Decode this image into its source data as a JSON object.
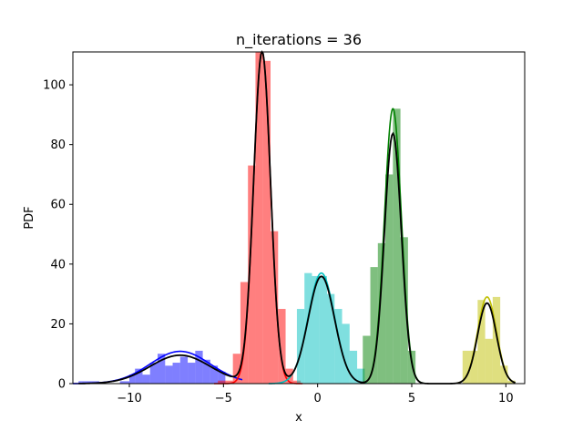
{
  "chart_data": {
    "type": "histogram_with_density",
    "title": "n_iterations = 36",
    "xlabel": "x",
    "ylabel": "PDF",
    "xlim": [
      -13,
      11
    ],
    "ylim": [
      0,
      111
    ],
    "x_ticks": [
      -10,
      -5,
      0,
      5,
      10
    ],
    "y_ticks": [
      0,
      20,
      40,
      60,
      80,
      100
    ],
    "x_tick_labels": [
      "−10",
      "−5",
      "0",
      "5",
      "10"
    ],
    "y_tick_labels": [
      "0",
      "20",
      "40",
      "60",
      "80",
      "100"
    ],
    "grid": false,
    "legend": "none",
    "histograms": [
      {
        "color": "#0000ff",
        "alpha": 0.5,
        "bins": [
          [
            -12.7,
            -12.15,
            0.8
          ],
          [
            -12.15,
            -11.6,
            0.8
          ],
          [
            -10.5,
            -10.0,
            0.8
          ],
          [
            -10.0,
            -9.7,
            3.0
          ],
          [
            -9.7,
            -9.3,
            5.0
          ],
          [
            -9.3,
            -8.9,
            3.0
          ],
          [
            -8.9,
            -8.5,
            7.0
          ],
          [
            -8.5,
            -8.1,
            10.0
          ],
          [
            -8.1,
            -7.7,
            6.0
          ],
          [
            -7.7,
            -7.3,
            7.0
          ],
          [
            -7.3,
            -6.9,
            9.0
          ],
          [
            -6.9,
            -6.5,
            7.0
          ],
          [
            -6.5,
            -6.1,
            11.0
          ],
          [
            -6.1,
            -5.7,
            8.0
          ],
          [
            -5.7,
            -5.3,
            6.0
          ],
          [
            -5.3,
            -4.9,
            4.0
          ]
        ]
      },
      {
        "color": "#ff0000",
        "alpha": 0.5,
        "bins": [
          [
            -5.3,
            -4.5,
            1.0
          ],
          [
            -4.5,
            -4.1,
            10.0
          ],
          [
            -4.1,
            -3.7,
            34.0
          ],
          [
            -3.7,
            -3.3,
            73.0
          ],
          [
            -3.3,
            -2.9,
            112.0
          ],
          [
            -2.9,
            -2.5,
            108.0
          ],
          [
            -2.5,
            -2.1,
            51.0
          ],
          [
            -2.1,
            -1.7,
            25.0
          ],
          [
            -1.7,
            -1.3,
            5.0
          ],
          [
            -1.3,
            -0.9,
            1.0
          ]
        ]
      },
      {
        "color": "#00bfbf",
        "alpha": 0.5,
        "bins": [
          [
            -1.1,
            -0.7,
            25.0
          ],
          [
            -0.7,
            -0.3,
            37.0
          ],
          [
            -0.3,
            0.1,
            36.0
          ],
          [
            0.1,
            0.5,
            36.0
          ],
          [
            0.5,
            0.9,
            30.0
          ],
          [
            0.9,
            1.3,
            25.0
          ],
          [
            1.3,
            1.7,
            20.0
          ],
          [
            1.7,
            2.1,
            11.0
          ],
          [
            2.1,
            2.5,
            5.0
          ]
        ]
      },
      {
        "color": "#008000",
        "alpha": 0.5,
        "bins": [
          [
            2.4,
            2.8,
            16.0
          ],
          [
            2.8,
            3.2,
            39.0
          ],
          [
            3.2,
            3.6,
            47.0
          ],
          [
            3.6,
            4.0,
            70.0
          ],
          [
            4.0,
            4.4,
            92.0
          ],
          [
            4.4,
            4.8,
            49.0
          ],
          [
            4.8,
            5.2,
            11.0
          ]
        ]
      },
      {
        "color": "#bfbf00",
        "alpha": 0.5,
        "bins": [
          [
            7.7,
            8.1,
            11.0
          ],
          [
            8.1,
            8.5,
            11.0
          ],
          [
            8.5,
            8.9,
            28.0
          ],
          [
            8.9,
            9.3,
            15.0
          ],
          [
            9.3,
            9.7,
            29.0
          ],
          [
            9.7,
            10.1,
            6.0
          ],
          [
            10.1,
            10.5,
            1.0
          ]
        ]
      }
    ],
    "components": [
      {
        "color": "#0000ff",
        "mean": -7.3,
        "sigma": 1.6,
        "peak": 10.8,
        "x_range": [
          -13,
          -4
        ]
      },
      {
        "color": "#ff0000",
        "mean": -2.95,
        "sigma": 0.45,
        "peak": 111.0,
        "x_range": [
          -5.5,
          -0.8
        ]
      },
      {
        "color": "#00bfbf",
        "mean": 0.2,
        "sigma": 0.7,
        "peak": 37.0,
        "x_range": [
          -2.6,
          2.6
        ]
      },
      {
        "color": "#008000",
        "mean": 4.0,
        "sigma": 0.45,
        "peak": 92.0,
        "x_range": [
          2.3,
          5.7
        ]
      },
      {
        "color": "#bfbf00",
        "mean": 9.0,
        "sigma": 0.5,
        "peak": 29.0,
        "x_range": [
          7.4,
          10.5
        ]
      }
    ],
    "mixture_color": "#000000",
    "mixture_x_range": [
      -12.7,
      10.5
    ]
  }
}
